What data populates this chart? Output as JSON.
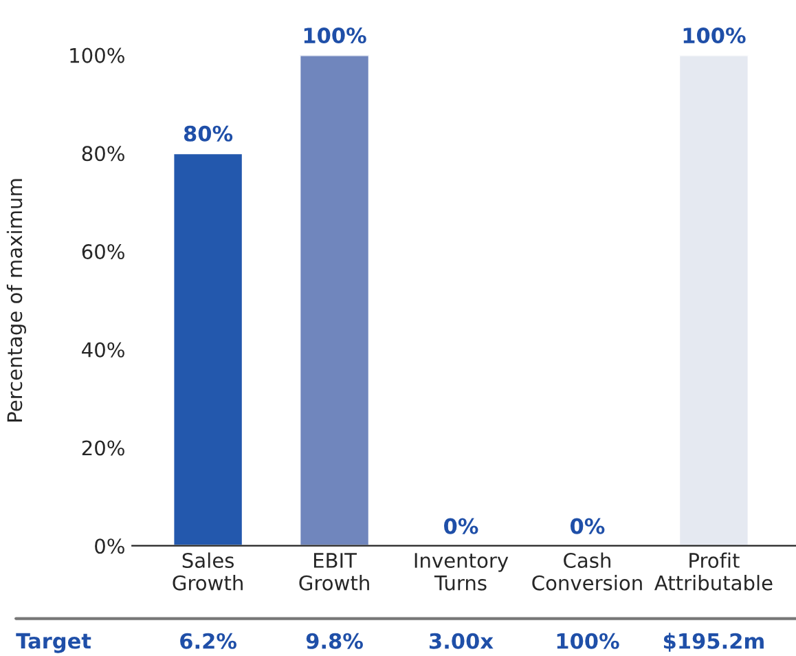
{
  "chart_data": {
    "type": "bar",
    "ylabel": "Percentage of maximum",
    "categories": [
      "Sales\nGrowth",
      "EBIT\nGrowth",
      "Inventory\nTurns",
      "Cash\nConversion",
      "Profit\nAttributable"
    ],
    "values": [
      80,
      100,
      0,
      0,
      100
    ],
    "colors": [
      "#2358ad",
      "#7086bd",
      null,
      null,
      "#e5e9f1"
    ],
    "value_labels": [
      "80%",
      "100%",
      "0%",
      "0%",
      "100%"
    ],
    "ylim": [
      0,
      100
    ],
    "yticks": [
      {
        "value": 0,
        "label": "0%"
      },
      {
        "value": 20,
        "label": "20%"
      },
      {
        "value": 40,
        "label": "40%"
      },
      {
        "value": 60,
        "label": "60%"
      },
      {
        "value": 80,
        "label": "80%"
      },
      {
        "value": 100,
        "label": "100%"
      }
    ],
    "grid": false,
    "legend": false,
    "annotations": [
      "Target",
      "6.2%",
      "9.8%",
      "3.00x",
      "100%",
      "$195.2m"
    ]
  }
}
